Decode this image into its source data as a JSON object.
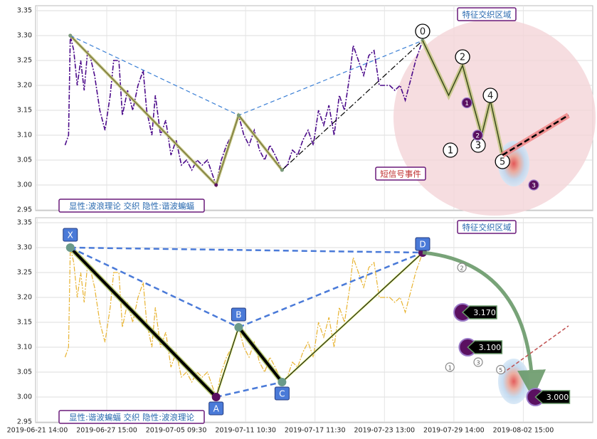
{
  "chart_data": [
    {
      "type": "line",
      "ylim": [
        2.95,
        3.36
      ],
      "yticks": [
        {
          "value": 2.95,
          "label": "2.95"
        },
        {
          "value": 3.0,
          "label": "3.00"
        },
        {
          "value": 3.05,
          "label": "3.05"
        },
        {
          "value": 3.1,
          "label": "3.10"
        },
        {
          "value": 3.15,
          "label": "3.15"
        },
        {
          "value": 3.2,
          "label": "3.20"
        },
        {
          "value": 3.25,
          "label": "3.25"
        },
        {
          "value": 3.3,
          "label": "3.30"
        },
        {
          "value": 3.35,
          "label": "3.35"
        }
      ],
      "xlim": [
        -1,
        320
      ],
      "xticks": [
        0,
        40,
        80,
        120,
        160,
        200,
        240,
        280
      ],
      "grid": true,
      "x": [
        16,
        18,
        19,
        21,
        23,
        25,
        27,
        29,
        31,
        33,
        36,
        39,
        42,
        44,
        47,
        49,
        52,
        55,
        58,
        61,
        63,
        66,
        68,
        71,
        74,
        77,
        80,
        83,
        86,
        89,
        92,
        95,
        98,
        100,
        103,
        106,
        109,
        112,
        116,
        119,
        122,
        125,
        128,
        131,
        134,
        137,
        141,
        144,
        147,
        150,
        153,
        156,
        159,
        162,
        165,
        168,
        171,
        174,
        177,
        180,
        182,
        185,
        188,
        191,
        194,
        197,
        200,
        203,
        206,
        209,
        212,
        215,
        218,
        222
      ],
      "series": [
        {
          "color": "#4b0a8a",
          "values": [
            3.08,
            3.1,
            3.3,
            3.27,
            3.2,
            3.25,
            3.19,
            3.27,
            3.25,
            3.22,
            3.15,
            3.11,
            3.18,
            3.25,
            3.25,
            3.14,
            3.19,
            3.15,
            3.2,
            3.23,
            3.15,
            3.1,
            3.18,
            3.1,
            3.13,
            3.06,
            3.09,
            3.04,
            3.05,
            3.03,
            3.05,
            3.04,
            3.05,
            3.03,
            3.0,
            3.05,
            3.08,
            3.1,
            3.14,
            3.1,
            3.08,
            3.11,
            3.07,
            3.05,
            3.08,
            3.06,
            3.03,
            3.04,
            3.07,
            3.06,
            3.09,
            3.11,
            3.08,
            3.15,
            3.12,
            3.16,
            3.1,
            3.18,
            3.15,
            3.22,
            3.28,
            3.25,
            3.22,
            3.26,
            3.27,
            3.2,
            3.2,
            3.2,
            3.19,
            3.2,
            3.17,
            3.21,
            3.25,
            3.29
          ]
        }
      ],
      "pattern_lines": [
        {
          "style": "solid",
          "color": "#7a7a3a",
          "x": [
            19,
            103,
            116,
            141
          ],
          "values": [
            3.3,
            3.0,
            3.14,
            3.03
          ]
        },
        {
          "style": "dashdot",
          "color": "#000000",
          "x": [
            141,
            222
          ],
          "values": [
            3.03,
            3.29
          ]
        },
        {
          "style": "dashed",
          "color": "#3a7fd5",
          "x": [
            19,
            116,
            222
          ],
          "values": [
            3.3,
            3.14,
            3.29
          ]
        }
      ],
      "wave": {
        "x": [
          222,
          237,
          245,
          256,
          261,
          268
        ],
        "values": [
          3.29,
          3.18,
          3.24,
          3.1,
          3.17,
          3.06
        ],
        "labels": [
          "0",
          null,
          "2",
          null,
          "4",
          "5"
        ]
      },
      "trend": {
        "x": [
          268,
          306
        ],
        "values": [
          3.06,
          3.14
        ]
      },
      "markers": [
        {
          "label": "1",
          "x": 238,
          "y": 3.07,
          "style": "outline"
        },
        {
          "label": "3",
          "x": 254,
          "y": 3.08,
          "style": "outline"
        },
        {
          "label": "1",
          "x": 247.5,
          "y": 3.165,
          "style": "filled"
        },
        {
          "label": "2",
          "x": 253.7,
          "y": 3.1,
          "style": "filled"
        },
        {
          "label": "3",
          "x": 286,
          "y": 3.0,
          "style": "filled"
        }
      ],
      "annotations": [
        "特征交织区域",
        "短信号事件",
        "显性:波浪理论 交织 隐性:谐波蝙蝠"
      ]
    },
    {
      "type": "line",
      "ylim": [
        2.95,
        3.36
      ],
      "yticks": [
        {
          "value": 2.95,
          "label": "2.95"
        },
        {
          "value": 3.0,
          "label": "3.00"
        },
        {
          "value": 3.05,
          "label": "3.05"
        },
        {
          "value": 3.1,
          "label": "3.10"
        },
        {
          "value": 3.15,
          "label": "3.15"
        },
        {
          "value": 3.2,
          "label": "3.20"
        },
        {
          "value": 3.25,
          "label": "3.25"
        },
        {
          "value": 3.3,
          "label": "3.30"
        },
        {
          "value": 3.35,
          "label": "3.35"
        }
      ],
      "xlim": [
        -1,
        320
      ],
      "xticks": [
        {
          "value": 0,
          "label": "2019-06-21 14:00"
        },
        {
          "value": 40,
          "label": "2019-06-27 15:00"
        },
        {
          "value": 80,
          "label": "2019-07-05 09:30"
        },
        {
          "value": 120,
          "label": "2019-07-11 10:30"
        },
        {
          "value": 160,
          "label": "2019-07-17 11:30"
        },
        {
          "value": 200,
          "label": "2019-07-23 13:00"
        },
        {
          "value": 240,
          "label": "2019-07-29 14:00"
        },
        {
          "value": 280,
          "label": "2019-08-02 15:00"
        }
      ],
      "grid": true,
      "x": [
        16,
        18,
        19,
        21,
        23,
        25,
        27,
        29,
        31,
        33,
        36,
        39,
        42,
        44,
        47,
        49,
        52,
        55,
        58,
        61,
        63,
        66,
        68,
        71,
        74,
        77,
        80,
        83,
        86,
        89,
        92,
        95,
        98,
        100,
        103,
        106,
        109,
        112,
        116,
        119,
        122,
        125,
        128,
        131,
        134,
        137,
        141,
        144,
        147,
        150,
        153,
        156,
        159,
        162,
        165,
        168,
        171,
        174,
        177,
        180,
        182,
        185,
        188,
        191,
        194,
        197,
        200,
        203,
        206,
        209,
        212,
        215,
        218,
        222
      ],
      "series": [
        {
          "color": "#e8b330",
          "values": [
            3.08,
            3.1,
            3.3,
            3.27,
            3.2,
            3.25,
            3.19,
            3.27,
            3.25,
            3.22,
            3.15,
            3.11,
            3.18,
            3.25,
            3.25,
            3.14,
            3.19,
            3.15,
            3.2,
            3.23,
            3.15,
            3.1,
            3.18,
            3.1,
            3.13,
            3.06,
            3.09,
            3.04,
            3.05,
            3.03,
            3.05,
            3.04,
            3.05,
            3.03,
            3.0,
            3.05,
            3.08,
            3.1,
            3.14,
            3.1,
            3.08,
            3.11,
            3.07,
            3.05,
            3.08,
            3.06,
            3.03,
            3.04,
            3.07,
            3.06,
            3.09,
            3.11,
            3.08,
            3.15,
            3.12,
            3.16,
            3.1,
            3.18,
            3.15,
            3.22,
            3.28,
            3.25,
            3.22,
            3.26,
            3.27,
            3.2,
            3.2,
            3.2,
            3.19,
            3.2,
            3.17,
            3.21,
            3.25,
            3.29
          ]
        }
      ],
      "points": {
        "labels": [
          "X",
          "A",
          "B",
          "C",
          "D"
        ],
        "x": [
          19,
          103,
          116,
          141,
          222
        ],
        "values": [
          3.3,
          3.0,
          3.14,
          3.03,
          3.29
        ]
      },
      "price_tags": {
        "x": [
          245,
          248,
          287
        ],
        "values": [
          3.17,
          3.1,
          3.0
        ],
        "value_labels": [
          "3.170",
          "3.100",
          "3.000"
        ]
      },
      "markers": [
        {
          "label": "2",
          "x": 244.6,
          "y": 3.26,
          "style": "small"
        },
        {
          "label": "1",
          "x": 237.7,
          "y": 3.06,
          "style": "small"
        },
        {
          "label": "3",
          "x": 254,
          "y": 3.07,
          "style": "small"
        },
        {
          "label": "5",
          "x": 267,
          "y": 3.055,
          "style": "small"
        }
      ],
      "annotations": [
        "特征交织区域",
        "显性:谐波蝙蝠 交织 隐性:波浪理论"
      ]
    }
  ]
}
